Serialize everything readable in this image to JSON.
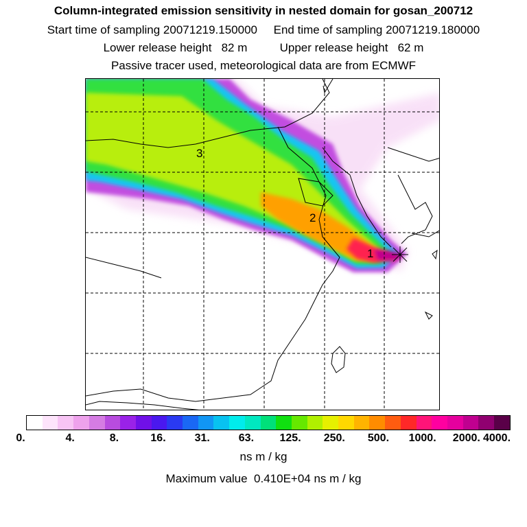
{
  "header": {
    "title": "Column-integrated emission sensitivity in nested domain for gosan_200712",
    "sampling": "Start time of sampling 20071219.150000     End time of sampling 20071219.180000",
    "release": "Lower release height   82 m          Upper release height   62 m",
    "tracer": "Passive tracer used, meteorological data are from ECMWF"
  },
  "map": {
    "labels": [
      {
        "text": "1"
      },
      {
        "text": "2"
      },
      {
        "text": "3"
      }
    ]
  },
  "colorbar": {
    "colors": [
      "#ffffff",
      "#fde4fb",
      "#f7c4f4",
      "#eea2ec",
      "#d57ce3",
      "#b84cdf",
      "#9a22e8",
      "#7010e8",
      "#4a18ef",
      "#2a3af2",
      "#1a68f5",
      "#1196f4",
      "#08c2f0",
      "#00ecec",
      "#00e8c0",
      "#00e07a",
      "#10e010",
      "#66e800",
      "#b0f000",
      "#e6f000",
      "#ffd800",
      "#ffb400",
      "#ff8c00",
      "#ff5c10",
      "#ff2828",
      "#ff1478",
      "#ff00a0",
      "#e6009e",
      "#c00090",
      "#900070",
      "#5a0048"
    ],
    "tick_labels": [
      "0.",
      "4.",
      "8.",
      "16.",
      "31.",
      "63.",
      "125.",
      "250.",
      "500.",
      "1000.",
      "2000.",
      "4000."
    ],
    "units": "ns m / kg"
  },
  "footer": {
    "maximum": "Maximum value  0.410E+04 ns m / kg"
  }
}
